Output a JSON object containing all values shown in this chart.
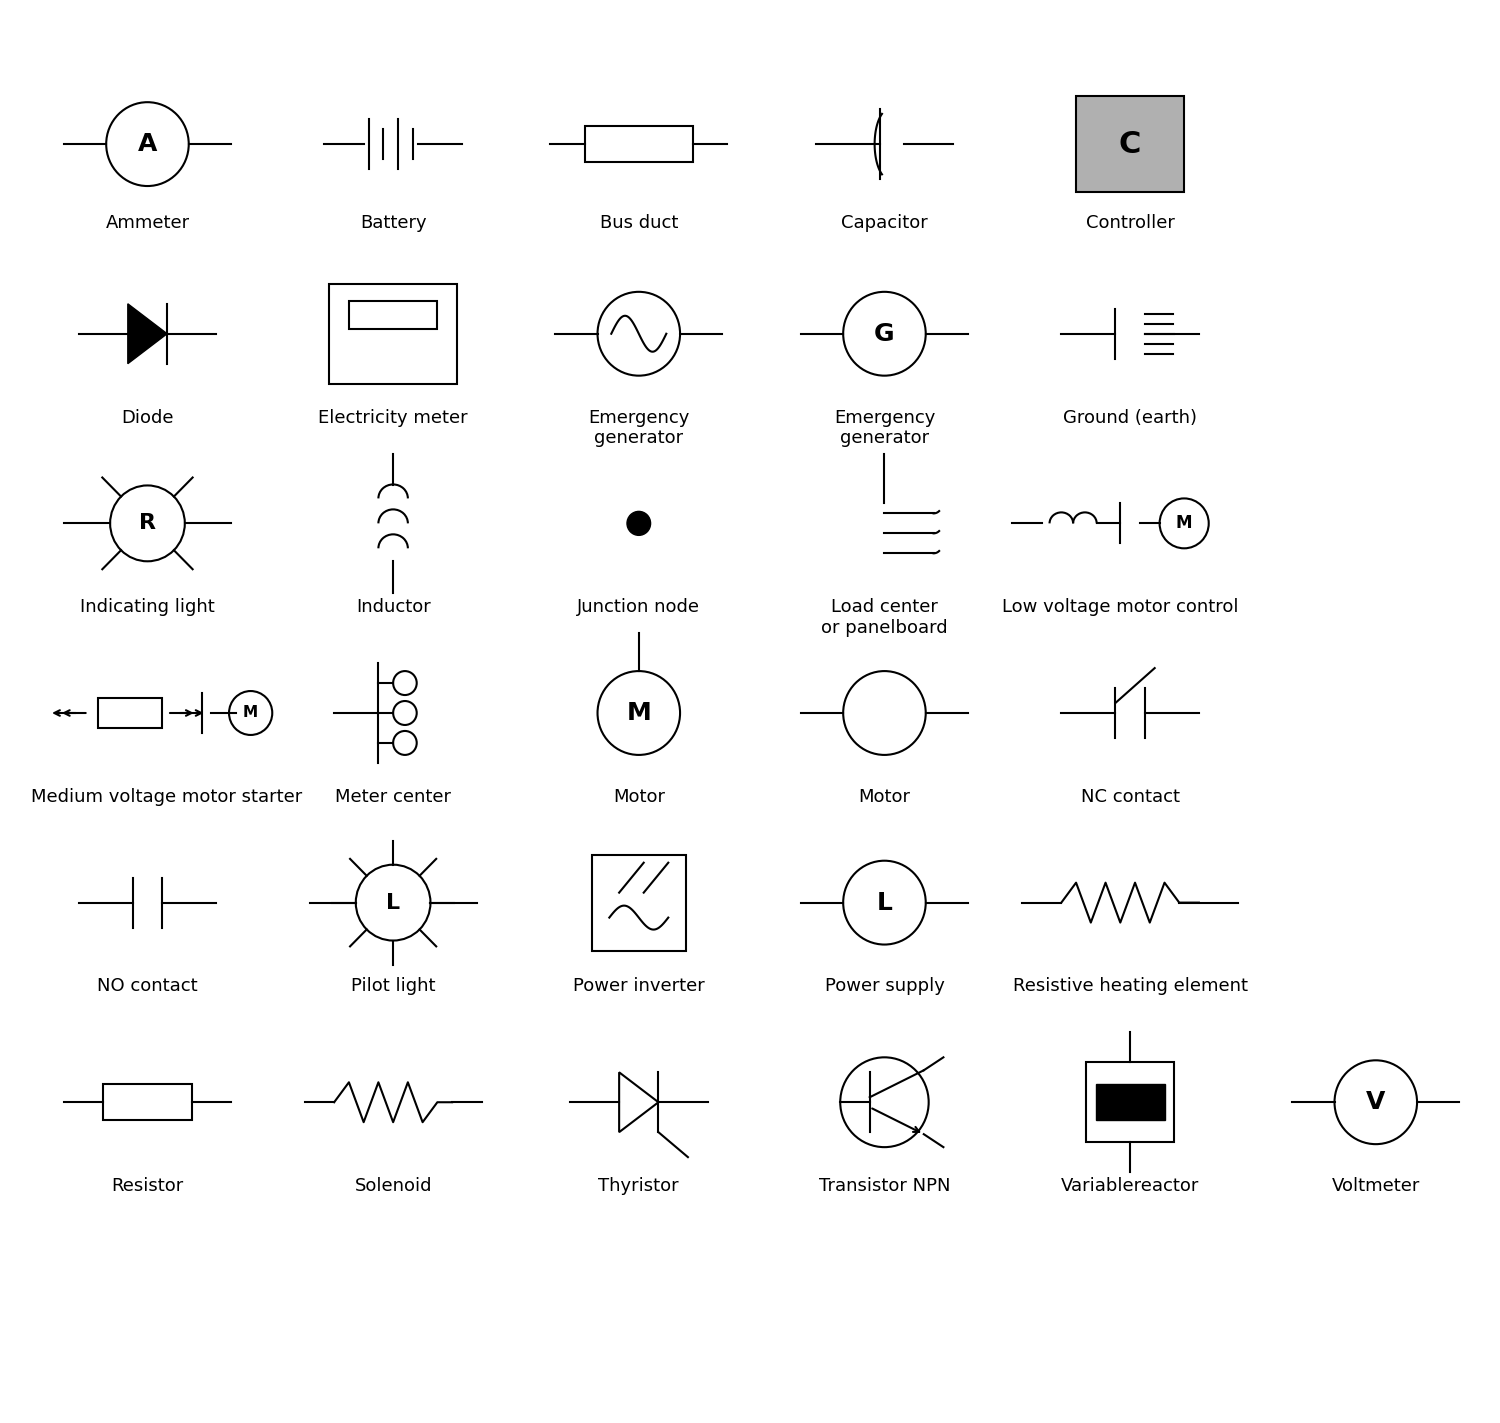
{
  "background_color": "#ffffff",
  "line_color": "#000000",
  "gray_fill": "#b0b0b0",
  "label_fontsize": 13,
  "label_fontfamily": "DejaVu Sans",
  "symbols": [
    {
      "name": "Ammeter",
      "col": 0,
      "row": 0
    },
    {
      "name": "Battery",
      "col": 1,
      "row": 0
    },
    {
      "name": "Bus duct",
      "col": 2,
      "row": 0
    },
    {
      "name": "Capacitor",
      "col": 3,
      "row": 0
    },
    {
      "name": "Controller",
      "col": 4,
      "row": 0
    },
    {
      "name": "Diode",
      "col": 0,
      "row": 1
    },
    {
      "name": "Electricity meter",
      "col": 1,
      "row": 1
    },
    {
      "name": "Emergency\ngenerator",
      "col": 2,
      "row": 1
    },
    {
      "name": "Emergency\ngenerator",
      "col": 3,
      "row": 1
    },
    {
      "name": "Ground (earth)",
      "col": 4,
      "row": 1
    },
    {
      "name": "Indicating light",
      "col": 0,
      "row": 2
    },
    {
      "name": "Inductor",
      "col": 1,
      "row": 2
    },
    {
      "name": "Junction node",
      "col": 2,
      "row": 2
    },
    {
      "name": "Load center\nor panelboard",
      "col": 3,
      "row": 2
    },
    {
      "name": "Low voltage motor control",
      "col": 4,
      "row": 2
    },
    {
      "name": "Medium voltage motor starter",
      "col": 0,
      "row": 3
    },
    {
      "name": "Meter center",
      "col": 1,
      "row": 3
    },
    {
      "name": "Motor",
      "col": 2,
      "row": 3
    },
    {
      "name": "Motor",
      "col": 3,
      "row": 3
    },
    {
      "name": "NC contact",
      "col": 4,
      "row": 3
    },
    {
      "name": "NO contact",
      "col": 0,
      "row": 4
    },
    {
      "name": "Pilot light",
      "col": 1,
      "row": 4
    },
    {
      "name": "Power inverter",
      "col": 2,
      "row": 4
    },
    {
      "name": "Power supply",
      "col": 3,
      "row": 4
    },
    {
      "name": "Resistive heating element",
      "col": 4,
      "row": 4
    },
    {
      "name": "Resistor",
      "col": 0,
      "row": 5
    },
    {
      "name": "Solenoid",
      "col": 1,
      "row": 5
    },
    {
      "name": "Thyristor",
      "col": 2,
      "row": 5
    },
    {
      "name": "Transistor NPN",
      "col": 3,
      "row": 5
    },
    {
      "name": "Variablereactor",
      "col": 4,
      "row": 5
    },
    {
      "name": "Voltmeter",
      "col": 5,
      "row": 5
    }
  ]
}
